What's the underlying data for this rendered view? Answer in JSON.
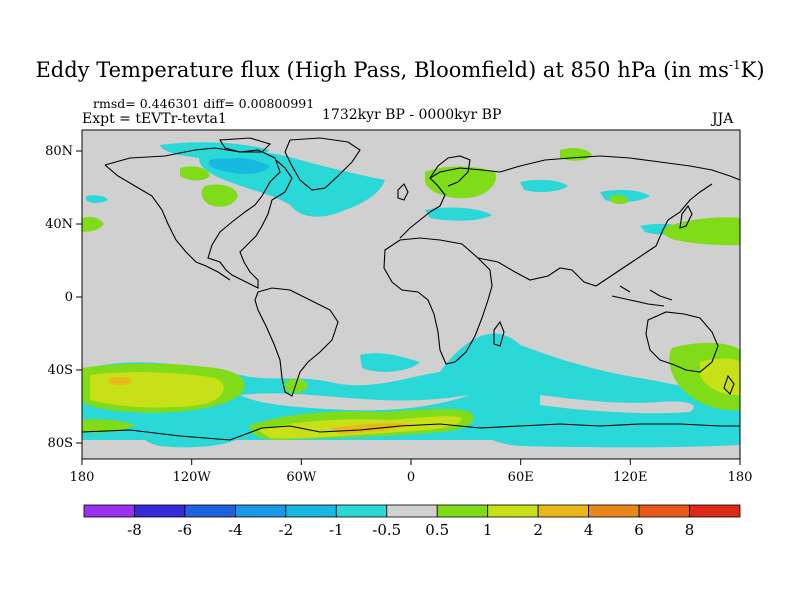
{
  "title_main": "Eddy Temperature flux (High Pass, Bloomfield) at 850 hPa (in ms",
  "title_sup": "-1",
  "title_end": "K)",
  "stats": "rmsd= 0.446301 diff= 0.00800991",
  "experiment": "Expt = tEVTr-tevta1",
  "period": "1732kyr BP - 0000kyr BP",
  "season": "JJA",
  "map": {
    "projection": "cylindrical equidistant",
    "ocean_land_neutral_color": "#d0d0d0",
    "coastline_color": "#000000",
    "lon_ticks": [
      "180",
      "120W",
      "60W",
      "0",
      "60E",
      "120E",
      "180"
    ],
    "lat_ticks": [
      "80N",
      "40N",
      "0",
      "40S",
      "80S"
    ]
  },
  "colorbar": {
    "levels": [
      "-8",
      "-6",
      "-4",
      "-2",
      "-1",
      "-0.5",
      "0.5",
      "1",
      "2",
      "4",
      "6",
      "8"
    ],
    "colors": [
      "#9b30f0",
      "#3a2bd8",
      "#1e62e0",
      "#1a98e8",
      "#19b8e0",
      "#2ad8d8",
      "#d0d0d0",
      "#80dc18",
      "#c8e018",
      "#e8b818",
      "#e88818",
      "#e85818",
      "#e02818"
    ]
  }
}
